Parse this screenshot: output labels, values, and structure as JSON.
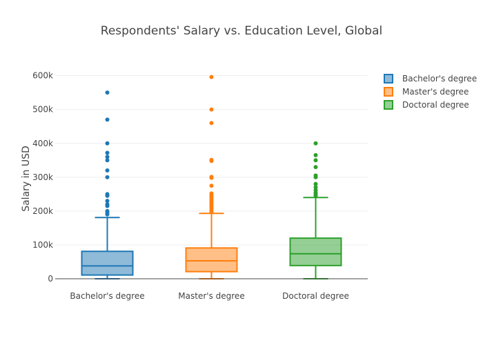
{
  "chart_data": {
    "type": "box",
    "title": "Respondents' Salary vs. Education Level, Global",
    "xlabel": "",
    "ylabel": "Salary in USD",
    "ylim": [
      0,
      640000
    ],
    "yticks": [
      0,
      100000,
      200000,
      300000,
      400000,
      500000,
      600000
    ],
    "ytick_labels": [
      "0",
      "100k",
      "200k",
      "300k",
      "400k",
      "500k",
      "600k"
    ],
    "grid": true,
    "legend_position": "right",
    "categories": [
      "Bachelor's degree",
      "Master's degree",
      "Doctoral degree"
    ],
    "series": [
      {
        "name": "Bachelor's degree",
        "color": "#1f77b4",
        "min": 0,
        "q1": 11000,
        "median": 38000,
        "q3": 81000,
        "max": 181000,
        "outliers": [
          190000,
          195000,
          200000,
          215000,
          220000,
          230000,
          245000,
          250000,
          300000,
          320000,
          350000,
          360000,
          372000,
          400000,
          470000,
          550000
        ]
      },
      {
        "name": "Master's degree",
        "color": "#ff7f0e",
        "min": 0,
        "q1": 21000,
        "median": 53000,
        "q3": 91000,
        "max": 193000,
        "outliers": [
          197000,
          202000,
          207000,
          212000,
          217000,
          222000,
          227000,
          232000,
          237000,
          242000,
          247000,
          252000,
          275000,
          298000,
          301000,
          348000,
          351000,
          460000,
          500000,
          596000
        ]
      },
      {
        "name": "Doctoral degree",
        "color": "#2ca02c",
        "min": 0,
        "q1": 39000,
        "median": 74000,
        "q3": 120000,
        "max": 240000,
        "outliers": [
          245000,
          250000,
          255000,
          262000,
          270000,
          280000,
          300000,
          305000,
          330000,
          350000,
          365000,
          400000
        ]
      }
    ]
  }
}
